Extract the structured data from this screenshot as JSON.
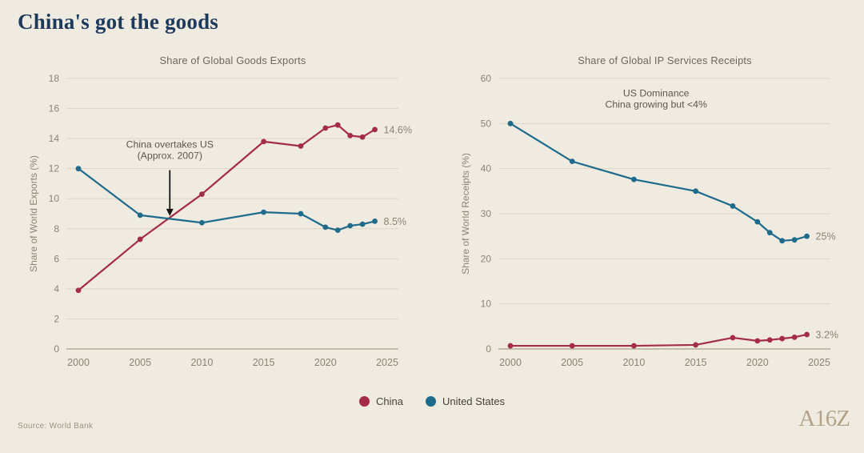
{
  "page": {
    "title": "China's got the goods",
    "source": "Source: World Bank",
    "logo": "A16Z"
  },
  "theme": {
    "background": "#f0ebe1",
    "title_color": "#1d3a5c",
    "china_color": "#a52c47",
    "us_color": "#1f6b8c",
    "logo_color": "#b2a388"
  },
  "legend": [
    {
      "label": "China",
      "color": "#a52c47"
    },
    {
      "label": "United States",
      "color": "#1f6b8c"
    }
  ],
  "chart_data": [
    {
      "type": "line",
      "title": "Share of Global Goods Exports",
      "ylabel": "Share of World Exports (%)",
      "xlim": [
        2000,
        2025
      ],
      "ylim": [
        0,
        18
      ],
      "ytick_step": 2,
      "xticks": [
        2000,
        2005,
        2010,
        2015,
        2020,
        2025
      ],
      "grid": true,
      "x": [
        2000,
        2005,
        2010,
        2015,
        2018,
        2020,
        2021,
        2022,
        2023,
        2024
      ],
      "series": [
        {
          "name": "China",
          "color": "#a52c47",
          "values": [
            3.9,
            7.3,
            10.3,
            13.8,
            13.5,
            14.7,
            14.9,
            14.2,
            14.1,
            14.6
          ],
          "end_label": "14.6%"
        },
        {
          "name": "United States",
          "color": "#1f6b8c",
          "values": [
            12.0,
            8.9,
            8.4,
            9.1,
            9.0,
            8.1,
            7.9,
            8.2,
            8.3,
            8.5
          ],
          "end_label": "8.5%"
        }
      ],
      "annotation": {
        "lines": [
          "China overtakes US",
          "(Approx. 2007)"
        ],
        "x": 2007.4,
        "y": 13.4,
        "arrow": {
          "x": 2007.4,
          "from_y": 11.9,
          "to_y": 8.85
        }
      }
    },
    {
      "type": "line",
      "title": "Share of Global IP Services Receipts",
      "ylabel": "Share of World Receipts (%)",
      "xlim": [
        2000,
        2025
      ],
      "ylim": [
        0,
        60
      ],
      "ytick_step": 10,
      "xticks": [
        2000,
        2005,
        2010,
        2015,
        2020,
        2025
      ],
      "grid": true,
      "x": [
        2000,
        2005,
        2010,
        2015,
        2018,
        2020,
        2021,
        2022,
        2023,
        2024
      ],
      "series": [
        {
          "name": "United States",
          "color": "#1f6b8c",
          "values": [
            50.0,
            41.6,
            37.6,
            35.0,
            31.7,
            28.2,
            25.8,
            24.0,
            24.2,
            25.0
          ],
          "end_label": "25%"
        },
        {
          "name": "China",
          "color": "#a52c47",
          "values": [
            0.7,
            0.7,
            0.7,
            0.9,
            2.5,
            1.8,
            2.0,
            2.3,
            2.6,
            3.2
          ],
          "end_label": "3.2%"
        }
      ],
      "annotation": {
        "lines": [
          "US Dominance",
          "China growing but <4%"
        ],
        "x": 2011.8,
        "y": 56.0
      }
    }
  ]
}
